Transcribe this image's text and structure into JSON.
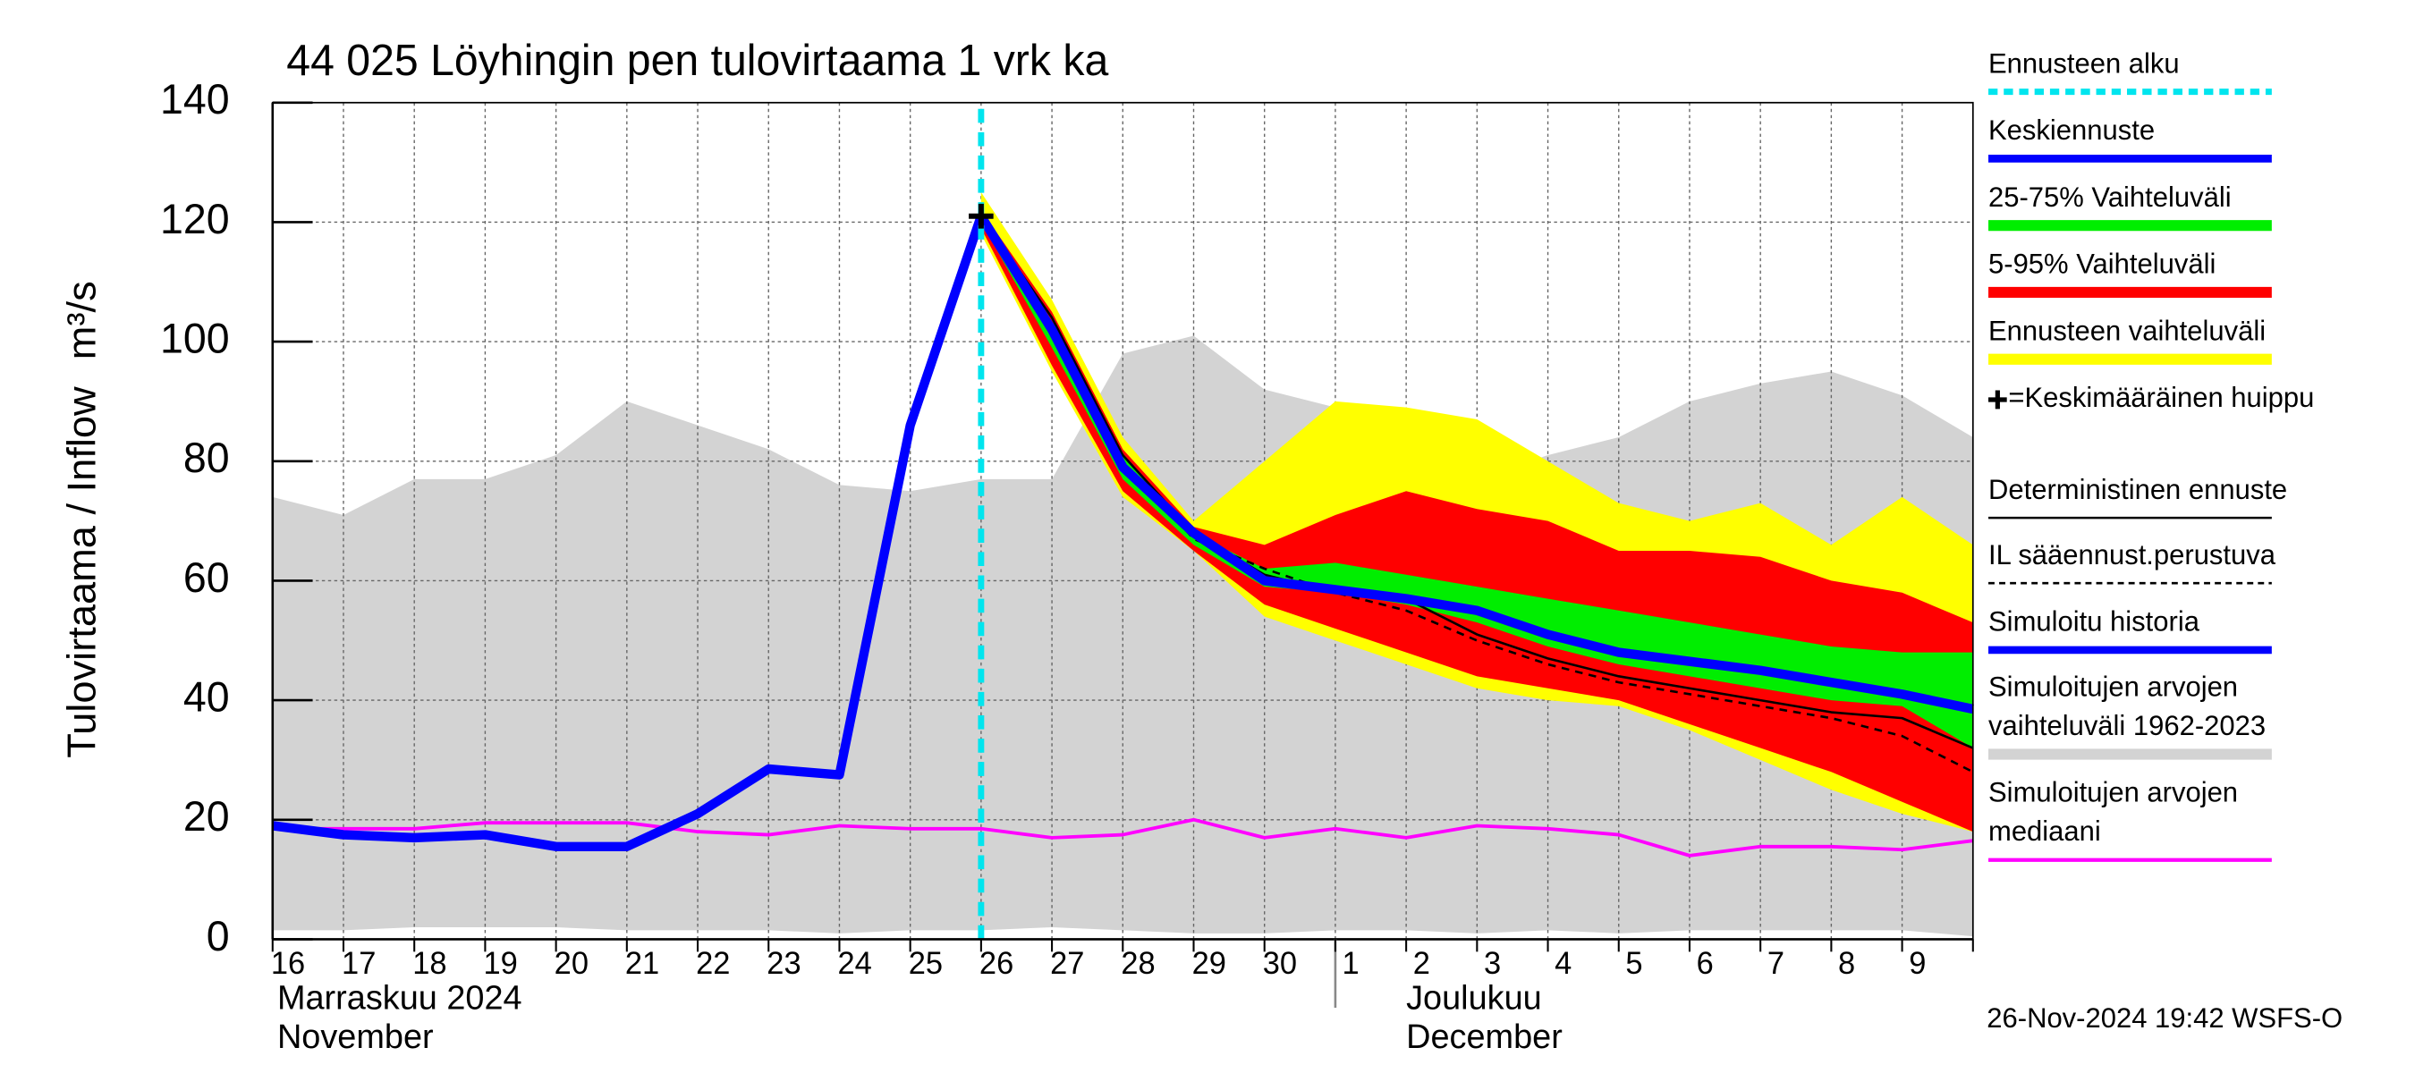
{
  "chart_data": {
    "type": "line",
    "title": "44 025 Löyhingin pen tulovirtaama 1 vrk ka",
    "y_label": "Tulovirtaama / Inflow",
    "y_unit": "m³/s",
    "month_labels": [
      [
        "Marraskuu 2024",
        "November"
      ],
      [
        "Joulukuu",
        "December"
      ]
    ],
    "timestamp": "26-Nov-2024 19:42 WSFS-O",
    "categories": [
      "16",
      "17",
      "18",
      "19",
      "20",
      "21",
      "22",
      "23",
      "24",
      "25",
      "26",
      "27",
      "28",
      "29",
      "30",
      "1",
      "2",
      "3",
      "4",
      "5",
      "6",
      "7",
      "8",
      "9",
      null
    ],
    "ylim": [
      0,
      140
    ],
    "yticks": [
      0,
      20,
      40,
      60,
      80,
      100,
      120,
      140
    ],
    "grid": true,
    "series": [
      {
        "name": "Ennusteen alku",
        "kind": "vline",
        "color": "#00e5ee",
        "category": "26"
      },
      {
        "name": "Keskiennuste",
        "kind": "line",
        "color": "#0000ff",
        "values": [
          null,
          null,
          null,
          null,
          null,
          null,
          null,
          null,
          null,
          null,
          121,
          102,
          79,
          68,
          60,
          58.5,
          57,
          55,
          51,
          48,
          46.5,
          45,
          43,
          41,
          38.5
        ]
      },
      {
        "name": "25-75% Vaihteluväli",
        "kind": "band",
        "color": "#00ee00",
        "values": [
          null,
          null,
          null,
          null,
          null,
          null,
          null,
          null,
          null,
          null,
          121,
          102,
          81,
          68,
          62,
          63,
          61,
          59,
          57,
          55,
          53,
          51,
          49,
          48,
          48
        ],
        "lower": [
          null,
          null,
          null,
          null,
          null,
          null,
          null,
          null,
          null,
          null,
          120,
          99,
          77,
          66,
          59,
          58,
          56,
          53,
          49,
          46,
          44,
          42,
          40,
          39,
          32
        ]
      },
      {
        "name": "5-95% Vaihteluväli",
        "kind": "band",
        "color": "#ff0000",
        "values": [
          null,
          null,
          null,
          null,
          null,
          null,
          null,
          null,
          null,
          null,
          122,
          105,
          82,
          69,
          66,
          71,
          75,
          72,
          70,
          65,
          65,
          64,
          60,
          58,
          53
        ],
        "lower": [
          null,
          null,
          null,
          null,
          null,
          null,
          null,
          null,
          null,
          null,
          119,
          96,
          75,
          65,
          56,
          52,
          48,
          44,
          42,
          40,
          36,
          32,
          28,
          23,
          18
        ]
      },
      {
        "name": "Ennusteen vaihteluväli",
        "kind": "band",
        "color": "#ffff00",
        "values": [
          null,
          null,
          null,
          null,
          null,
          null,
          null,
          null,
          null,
          null,
          125,
          107,
          84,
          70,
          80,
          90,
          89,
          87,
          80,
          73,
          70,
          73,
          66,
          74,
          66
        ],
        "lower": [
          null,
          null,
          null,
          null,
          null,
          null,
          null,
          null,
          null,
          null,
          118,
          95,
          74,
          65,
          54,
          50,
          46,
          42,
          40,
          39,
          35,
          30,
          25,
          21,
          18
        ]
      },
      {
        "name": "=Keskimääräinen huippu",
        "kind": "marker",
        "color": "#000000",
        "values": [
          null,
          null,
          null,
          null,
          null,
          null,
          null,
          null,
          null,
          null,
          121,
          null,
          null,
          null,
          null,
          null,
          null,
          null,
          null,
          null,
          null,
          null,
          null,
          null,
          null
        ]
      },
      {
        "name": "Deterministinen ennuste",
        "kind": "line",
        "color": "#000000",
        "values": [
          null,
          null,
          null,
          null,
          null,
          null,
          null,
          null,
          null,
          null,
          121,
          104,
          81,
          68,
          61,
          58,
          57,
          51,
          47,
          44,
          42,
          40,
          38,
          37,
          32
        ]
      },
      {
        "name": "IL sääennust.perustuva",
        "kind": "dashed",
        "color": "#000000",
        "values": [
          null,
          null,
          null,
          null,
          null,
          null,
          null,
          null,
          null,
          null,
          121,
          103,
          80,
          67,
          62,
          58,
          55,
          50,
          46,
          43,
          41,
          39,
          37,
          34,
          28
        ]
      },
      {
        "name": "Simuloitu historia",
        "kind": "line",
        "color": "#0000ff",
        "values": [
          19,
          17.5,
          17,
          17.5,
          15.5,
          15.5,
          21,
          28.5,
          27.5,
          86,
          121,
          null,
          null,
          null,
          null,
          null,
          null,
          null,
          null,
          null,
          null,
          null,
          null,
          null,
          null
        ]
      },
      {
        "name": "Simuloitujen arvojen\nvaihteluväli 1962-2023",
        "kind": "band",
        "color": "#d3d3d3",
        "values": [
          74,
          71,
          77,
          77,
          81,
          90,
          86,
          82,
          76,
          75,
          77,
          77,
          98,
          101,
          92,
          89,
          84,
          77,
          81,
          84,
          90,
          93,
          95,
          91,
          84
        ],
        "lower": [
          1.5,
          1.5,
          2,
          2,
          2,
          1.5,
          1.5,
          1.5,
          1,
          1.5,
          1.5,
          2,
          1.5,
          1,
          1,
          1.5,
          1.5,
          1,
          1.5,
          1,
          1.5,
          1.5,
          1.5,
          1.5,
          0.5
        ]
      },
      {
        "name": "Simuloitujen arvojen\nmediaani",
        "kind": "line",
        "color": "#ff00ff",
        "values": [
          18.5,
          18.5,
          18.5,
          19.5,
          19.5,
          19.5,
          18,
          17.5,
          19,
          18.5,
          18.5,
          17,
          17.5,
          20,
          17,
          18.5,
          17,
          19,
          18.5,
          17.5,
          14,
          15.5,
          15.5,
          15,
          16.5
        ]
      }
    ]
  }
}
